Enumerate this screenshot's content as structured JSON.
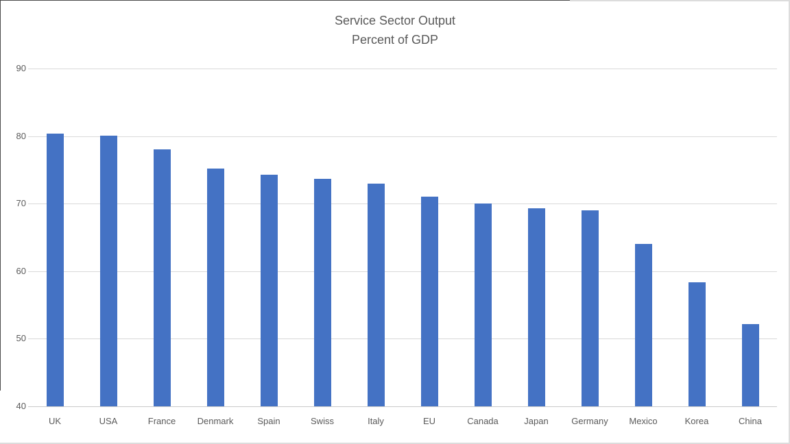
{
  "chart_data": {
    "type": "bar",
    "title": "Service Sector Output",
    "subtitle": "Percent of GDP",
    "categories": [
      "UK",
      "USA",
      "France",
      "Denmark",
      "Spain",
      "Swiss",
      "Italy",
      "EU",
      "Canada",
      "Japan",
      "Germany",
      "Mexico",
      "Korea",
      "China"
    ],
    "values": [
      80.4,
      80.1,
      78.0,
      75.2,
      74.3,
      73.7,
      73.0,
      71.0,
      70.0,
      69.3,
      69.0,
      64.0,
      58.4,
      52.2
    ],
    "xlabel": "",
    "ylabel": "",
    "ylim": [
      40,
      90
    ],
    "yticks": [
      40,
      50,
      60,
      70,
      80,
      90
    ],
    "grid": true,
    "legend": "none",
    "bar_color": "#4472C4",
    "gridline_color": "#D9D9D9",
    "axis_line_color": "#C9C9C9",
    "text_color": "#595959"
  }
}
